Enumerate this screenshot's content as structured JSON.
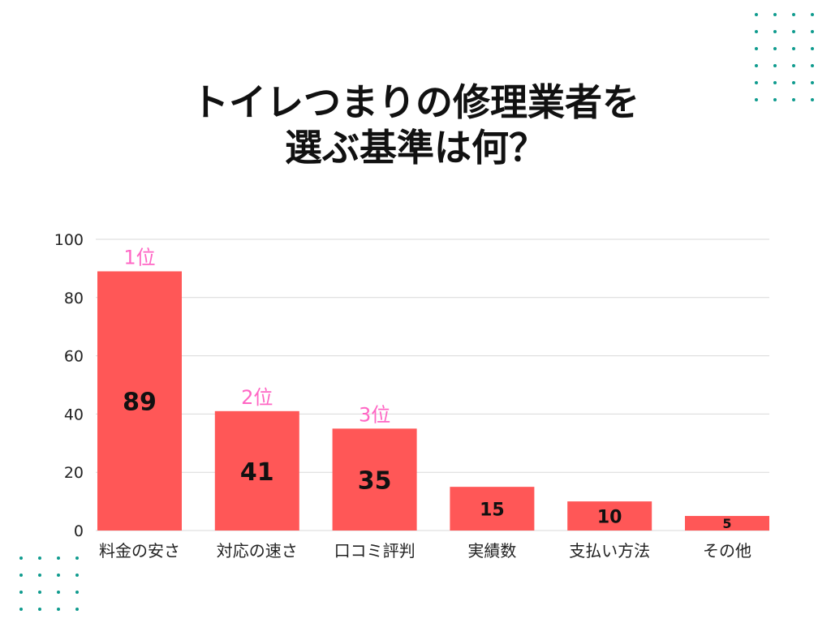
{
  "title_lines": [
    "トイレつまりの修理業者を",
    "選ぶ基準は何？"
  ],
  "colors": {
    "bar": "#ff5757",
    "rank_label": "#ff66c4",
    "value_label": "#111111",
    "decorative_dots": "#0f9b8e",
    "grid": "#d9d9d9"
  },
  "chart_data": {
    "type": "bar",
    "title": "トイレつまりの修理業者を選ぶ基準は何？",
    "categories": [
      "料金の安さ",
      "対応の速さ",
      "口コミ評判",
      "実績数",
      "支払い方法",
      "その他"
    ],
    "values": [
      89,
      41,
      35,
      15,
      10,
      5
    ],
    "rank_labels": [
      "1位",
      "2位",
      "3位",
      "",
      "",
      ""
    ],
    "xlabel": "",
    "ylabel": "",
    "ylim": [
      0,
      100
    ],
    "yticks": [
      0,
      20,
      40,
      60,
      80,
      100
    ],
    "grid": true,
    "legend": "none",
    "data_labels": true
  }
}
